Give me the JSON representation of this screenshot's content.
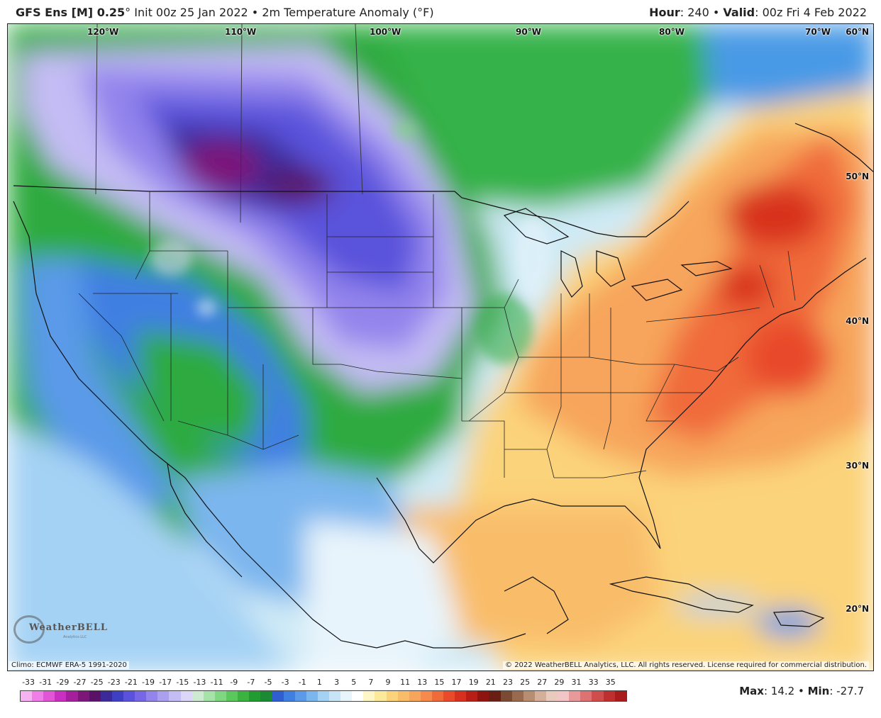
{
  "header": {
    "model": "GFS Ens [M] 0.25",
    "degree": "°",
    "init": "Init 00z 25 Jan 2022",
    "bullet": "•",
    "field": "2m Temperature Anomaly (°F)",
    "hour_label": "Hour",
    "hour_value": ": 240",
    "valid_label": "Valid",
    "valid_value": ": 00z Fri 4 Feb 2022"
  },
  "map": {
    "longitude_labels": [
      "120°W",
      "110°W",
      "100°W",
      "90°W",
      "80°W",
      "70°W"
    ],
    "latitude_labels": [
      "60°N",
      "50°N",
      "40°N",
      "30°N",
      "20°N"
    ],
    "logo_text": "WeatherBELL",
    "logo_subtext": "Analytics LLC",
    "climo": "Climo: ECMWF ERA-5 1991-2020",
    "copyright": "© 2022 WeatherBELL Analytics, LLC. All rights reserved. License required for commercial distribution."
  },
  "legend": {
    "ticks": [
      "-33",
      "-31",
      "-29",
      "-27",
      "-25",
      "-23",
      "-21",
      "-19",
      "-17",
      "-15",
      "-13",
      "-11",
      "-9",
      "-7",
      "-5",
      "-3",
      "-1",
      "1",
      "3",
      "5",
      "7",
      "9",
      "11",
      "13",
      "15",
      "17",
      "19",
      "21",
      "23",
      "25",
      "27",
      "29",
      "31",
      "33",
      "35"
    ],
    "colors": [
      "#f7b2f2",
      "#ef7fe6",
      "#e255d6",
      "#c92fc0",
      "#a51f9c",
      "#7d1679",
      "#5a1268",
      "#3c2a99",
      "#3f3fc4",
      "#5a52dc",
      "#7766e6",
      "#9384ec",
      "#ab9ff0",
      "#c4bcf4",
      "#dcd7f8",
      "#cdebd0",
      "#a6e3a9",
      "#7fd781",
      "#5bc85d",
      "#3cb341",
      "#229b30",
      "#1c8a34",
      "#2e5ed0",
      "#3f7fe2",
      "#5a9ae8",
      "#7bb6ee",
      "#a4d2f4",
      "#c8e5f8",
      "#e8f4fb",
      "#ffffff",
      "#fff6c8",
      "#fde99a",
      "#fbd37a",
      "#f9bd6a",
      "#f7a55c",
      "#f58a4c",
      "#f06a3a",
      "#e84a2a",
      "#d8301e",
      "#b81e16",
      "#8e1410",
      "#6a1d12",
      "#7a4a32",
      "#9a6a4e",
      "#b88e72",
      "#d4b09a",
      "#e8cbbd",
      "#f2c6c6",
      "#e89a9a",
      "#dd7272",
      "#d04d4d",
      "#bf2f2f",
      "#a81c1c"
    ]
  },
  "stats": {
    "max_label": "Max",
    "max_value": ": 14.2",
    "bullet": "•",
    "min_label": "Min",
    "min_value": ": -27.7"
  }
}
